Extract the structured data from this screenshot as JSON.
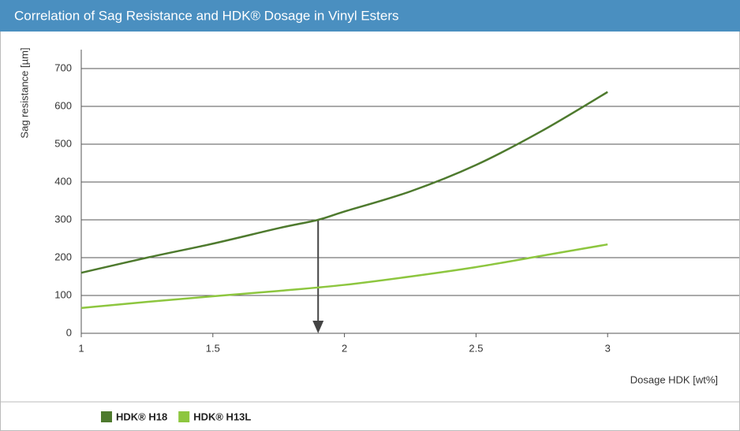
{
  "chart_data": {
    "type": "line",
    "title": "Correlation of Sag Resistance and HDK® Dosage in Vinyl Esters",
    "x_label": "Dosage HDK [wt%]",
    "y_label": "Sag resistance [µm]",
    "xlim": [
      1,
      3.5
    ],
    "xticks": [
      1,
      1.5,
      2,
      2.5,
      3
    ],
    "ylim": [
      0,
      750
    ],
    "yticks": [
      0,
      100,
      200,
      300,
      400,
      500,
      600,
      700
    ],
    "grid": true,
    "legend": "bottom-left",
    "reference": {
      "x": 1.9,
      "y": 300
    },
    "series": [
      {
        "name": "HDK® H18",
        "color": "#4e7a2e",
        "x": [
          1,
          1.25,
          1.5,
          1.75,
          1.9,
          2,
          2.25,
          2.5,
          2.75,
          3
        ],
        "values": [
          160,
          200,
          237,
          278,
          300,
          322,
          375,
          445,
          535,
          638
        ]
      },
      {
        "name": "HDK® H13L",
        "color": "#8dc63f",
        "x": [
          1,
          1.25,
          1.5,
          1.75,
          2,
          2.25,
          2.5,
          2.75,
          3
        ],
        "values": [
          67,
          83,
          98,
          112,
          128,
          150,
          175,
          205,
          235
        ]
      }
    ]
  }
}
